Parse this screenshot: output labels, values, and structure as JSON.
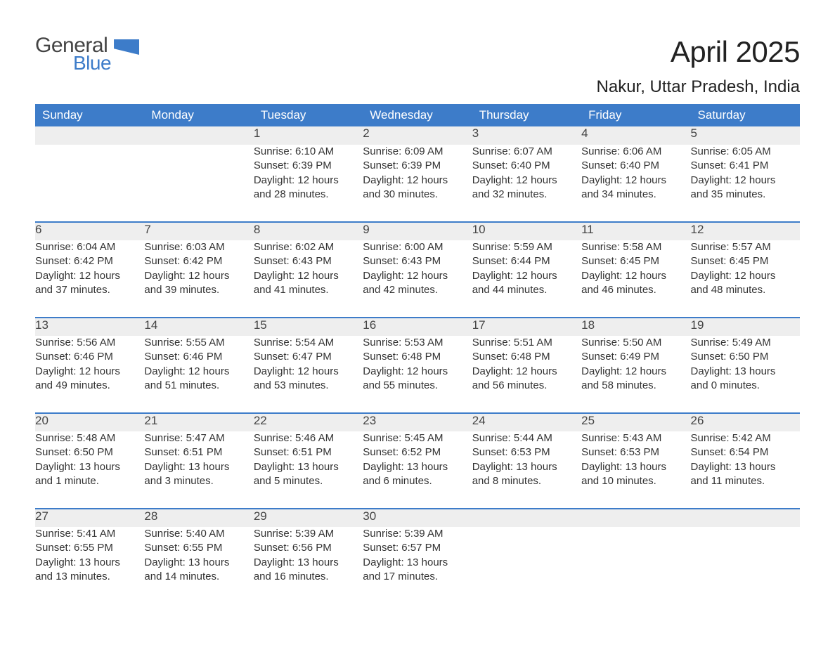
{
  "brand": {
    "line1": "General",
    "line2": "Blue"
  },
  "title": "April 2025",
  "location": "Nakur, Uttar Pradesh, India",
  "colors": {
    "accent": "#3d7cc9",
    "header_text": "#ffffff",
    "daynum_bg": "#eeeeee",
    "text": "#333333",
    "background": "#ffffff"
  },
  "calendar": {
    "type": "calendar",
    "columns": [
      "Sunday",
      "Monday",
      "Tuesday",
      "Wednesday",
      "Thursday",
      "Friday",
      "Saturday"
    ],
    "weeks": [
      [
        null,
        null,
        {
          "n": "1",
          "sunrise": "6:10 AM",
          "sunset": "6:39 PM",
          "day_h": 12,
          "day_m": 28,
          "day_unit": "minutes"
        },
        {
          "n": "2",
          "sunrise": "6:09 AM",
          "sunset": "6:39 PM",
          "day_h": 12,
          "day_m": 30,
          "day_unit": "minutes"
        },
        {
          "n": "3",
          "sunrise": "6:07 AM",
          "sunset": "6:40 PM",
          "day_h": 12,
          "day_m": 32,
          "day_unit": "minutes"
        },
        {
          "n": "4",
          "sunrise": "6:06 AM",
          "sunset": "6:40 PM",
          "day_h": 12,
          "day_m": 34,
          "day_unit": "minutes"
        },
        {
          "n": "5",
          "sunrise": "6:05 AM",
          "sunset": "6:41 PM",
          "day_h": 12,
          "day_m": 35,
          "day_unit": "minutes"
        }
      ],
      [
        {
          "n": "6",
          "sunrise": "6:04 AM",
          "sunset": "6:42 PM",
          "day_h": 12,
          "day_m": 37,
          "day_unit": "minutes"
        },
        {
          "n": "7",
          "sunrise": "6:03 AM",
          "sunset": "6:42 PM",
          "day_h": 12,
          "day_m": 39,
          "day_unit": "minutes"
        },
        {
          "n": "8",
          "sunrise": "6:02 AM",
          "sunset": "6:43 PM",
          "day_h": 12,
          "day_m": 41,
          "day_unit": "minutes"
        },
        {
          "n": "9",
          "sunrise": "6:00 AM",
          "sunset": "6:43 PM",
          "day_h": 12,
          "day_m": 42,
          "day_unit": "minutes"
        },
        {
          "n": "10",
          "sunrise": "5:59 AM",
          "sunset": "6:44 PM",
          "day_h": 12,
          "day_m": 44,
          "day_unit": "minutes"
        },
        {
          "n": "11",
          "sunrise": "5:58 AM",
          "sunset": "6:45 PM",
          "day_h": 12,
          "day_m": 46,
          "day_unit": "minutes"
        },
        {
          "n": "12",
          "sunrise": "5:57 AM",
          "sunset": "6:45 PM",
          "day_h": 12,
          "day_m": 48,
          "day_unit": "minutes"
        }
      ],
      [
        {
          "n": "13",
          "sunrise": "5:56 AM",
          "sunset": "6:46 PM",
          "day_h": 12,
          "day_m": 49,
          "day_unit": "minutes"
        },
        {
          "n": "14",
          "sunrise": "5:55 AM",
          "sunset": "6:46 PM",
          "day_h": 12,
          "day_m": 51,
          "day_unit": "minutes"
        },
        {
          "n": "15",
          "sunrise": "5:54 AM",
          "sunset": "6:47 PM",
          "day_h": 12,
          "day_m": 53,
          "day_unit": "minutes"
        },
        {
          "n": "16",
          "sunrise": "5:53 AM",
          "sunset": "6:48 PM",
          "day_h": 12,
          "day_m": 55,
          "day_unit": "minutes"
        },
        {
          "n": "17",
          "sunrise": "5:51 AM",
          "sunset": "6:48 PM",
          "day_h": 12,
          "day_m": 56,
          "day_unit": "minutes"
        },
        {
          "n": "18",
          "sunrise": "5:50 AM",
          "sunset": "6:49 PM",
          "day_h": 12,
          "day_m": 58,
          "day_unit": "minutes"
        },
        {
          "n": "19",
          "sunrise": "5:49 AM",
          "sunset": "6:50 PM",
          "day_h": 13,
          "day_m": 0,
          "day_unit": "minutes"
        }
      ],
      [
        {
          "n": "20",
          "sunrise": "5:48 AM",
          "sunset": "6:50 PM",
          "day_h": 13,
          "day_m": 1,
          "day_unit": "minute"
        },
        {
          "n": "21",
          "sunrise": "5:47 AM",
          "sunset": "6:51 PM",
          "day_h": 13,
          "day_m": 3,
          "day_unit": "minutes"
        },
        {
          "n": "22",
          "sunrise": "5:46 AM",
          "sunset": "6:51 PM",
          "day_h": 13,
          "day_m": 5,
          "day_unit": "minutes"
        },
        {
          "n": "23",
          "sunrise": "5:45 AM",
          "sunset": "6:52 PM",
          "day_h": 13,
          "day_m": 6,
          "day_unit": "minutes"
        },
        {
          "n": "24",
          "sunrise": "5:44 AM",
          "sunset": "6:53 PM",
          "day_h": 13,
          "day_m": 8,
          "day_unit": "minutes"
        },
        {
          "n": "25",
          "sunrise": "5:43 AM",
          "sunset": "6:53 PM",
          "day_h": 13,
          "day_m": 10,
          "day_unit": "minutes"
        },
        {
          "n": "26",
          "sunrise": "5:42 AM",
          "sunset": "6:54 PM",
          "day_h": 13,
          "day_m": 11,
          "day_unit": "minutes"
        }
      ],
      [
        {
          "n": "27",
          "sunrise": "5:41 AM",
          "sunset": "6:55 PM",
          "day_h": 13,
          "day_m": 13,
          "day_unit": "minutes"
        },
        {
          "n": "28",
          "sunrise": "5:40 AM",
          "sunset": "6:55 PM",
          "day_h": 13,
          "day_m": 14,
          "day_unit": "minutes"
        },
        {
          "n": "29",
          "sunrise": "5:39 AM",
          "sunset": "6:56 PM",
          "day_h": 13,
          "day_m": 16,
          "day_unit": "minutes"
        },
        {
          "n": "30",
          "sunrise": "5:39 AM",
          "sunset": "6:57 PM",
          "day_h": 13,
          "day_m": 17,
          "day_unit": "minutes"
        },
        null,
        null,
        null
      ]
    ],
    "labels": {
      "sunrise": "Sunrise:",
      "sunset": "Sunset:",
      "daylight": "Daylight:",
      "hours": "hours",
      "and": "and"
    }
  }
}
